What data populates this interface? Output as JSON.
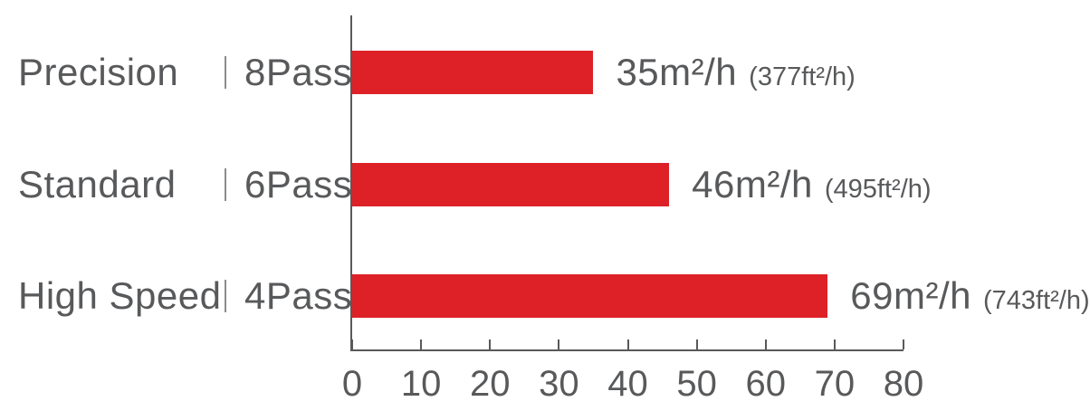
{
  "chart_data": {
    "type": "bar",
    "orientation": "horizontal",
    "title": "",
    "xlabel": "",
    "ylabel": "",
    "xlim": [
      0,
      80
    ],
    "x_ticks": [
      "0",
      "10",
      "20",
      "30",
      "40",
      "50",
      "60",
      "70",
      "80"
    ],
    "grid": false,
    "legend": false,
    "bar_color": "#DD2127",
    "axis_color": "#58595B",
    "text_color": "#58595B",
    "separator_glyph": "|",
    "rows": [
      {
        "mode": "Precision",
        "pass": "8Pass",
        "value": 35,
        "value_label": "35m²/h",
        "value_sub": "(377ft²/h)"
      },
      {
        "mode": "Standard",
        "pass": "6Pass",
        "value": 46,
        "value_label": "46m²/h",
        "value_sub": "(495ft²/h)"
      },
      {
        "mode": "High Speed",
        "pass": "4Pass",
        "value": 69,
        "value_label": "69m²/h",
        "value_sub": "(743ft²/h)"
      }
    ]
  }
}
